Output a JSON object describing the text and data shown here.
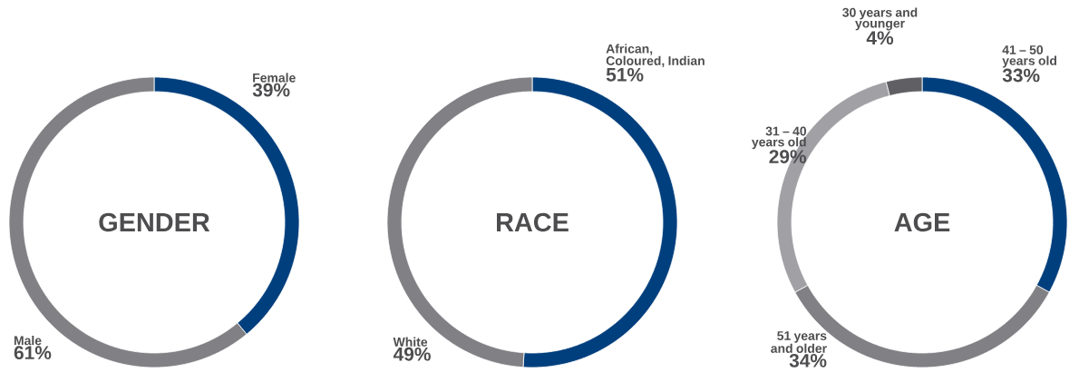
{
  "chart_data": [
    {
      "type": "donut",
      "title": "GENDER",
      "categories": [
        "Female",
        "Male"
      ],
      "values": [
        39,
        61
      ],
      "colors": [
        "#003f7d",
        "#808085"
      ],
      "value_labels": [
        "39%",
        "61%"
      ]
    },
    {
      "type": "donut",
      "title": "RACE",
      "categories": [
        "African, Coloured, Indian",
        "White"
      ],
      "values": [
        51,
        49
      ],
      "colors": [
        "#003f7d",
        "#808085"
      ],
      "value_labels": [
        "51%",
        "49%"
      ]
    },
    {
      "type": "donut",
      "title": "AGE",
      "categories": [
        "41 – 50 years old",
        "51 years and older",
        "31 – 40 years old",
        "30 years and younger"
      ],
      "values": [
        33,
        34,
        29,
        4
      ],
      "colors": [
        "#003f7d",
        "#808085",
        "#a0a0a5",
        "#606064"
      ],
      "value_labels": [
        "33%",
        "34%",
        "29%",
        "4%"
      ]
    }
  ]
}
